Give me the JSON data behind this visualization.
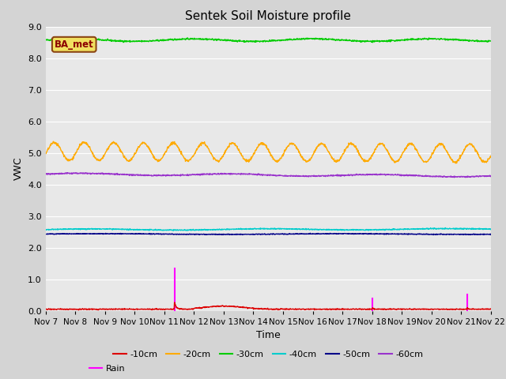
{
  "title": "Sentek Soil Moisture profile",
  "xlabel": "Time",
  "ylabel": "VWC",
  "ylim": [
    0.0,
    9.0
  ],
  "xlim": [
    0,
    15
  ],
  "yticks": [
    0.0,
    1.0,
    2.0,
    3.0,
    4.0,
    5.0,
    6.0,
    7.0,
    8.0,
    9.0
  ],
  "xtick_labels": [
    "Nov 7",
    "Nov 8",
    "Nov 9",
    "Nov 10",
    "Nov 11",
    "Nov 12",
    "Nov 13",
    "Nov 14",
    "Nov 15",
    "Nov 16",
    "Nov 17",
    "Nov 18",
    "Nov 19",
    "Nov 20",
    "Nov 21",
    "Nov 22"
  ],
  "fig_bg_color": "#d4d4d4",
  "plot_bg_color": "#e8e8e8",
  "grid_color": "#ffffff",
  "legend_label": "BA_met",
  "series": {
    "10cm": {
      "color": "#dd0000"
    },
    "20cm": {
      "color": "#ffaa00"
    },
    "30cm": {
      "color": "#00cc00"
    },
    "40cm": {
      "color": "#00cccc"
    },
    "50cm": {
      "color": "#000088"
    },
    "60cm": {
      "color": "#9933cc"
    },
    "rain": {
      "color": "#ff00ff"
    }
  },
  "n_points": 1500
}
